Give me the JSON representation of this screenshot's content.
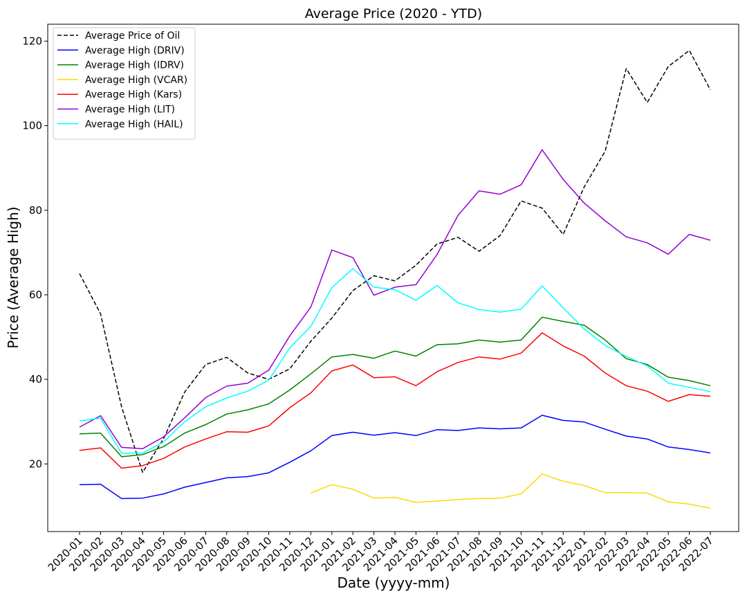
{
  "chart_data": {
    "type": "line",
    "title": "Average Price (2020 - YTD)",
    "xlabel": "Date (yyyy-mm)",
    "ylabel": "Price (Average High)",
    "ylim": [
      4,
      124
    ],
    "yticks": [
      20,
      40,
      60,
      80,
      100,
      120
    ],
    "grid": false,
    "legend_position": "upper-left",
    "categories": [
      "2020-01",
      "2020-02",
      "2020-03",
      "2020-04",
      "2020-05",
      "2020-06",
      "2020-07",
      "2020-08",
      "2020-09",
      "2020-10",
      "2020-11",
      "2020-12",
      "2021-01",
      "2021-02",
      "2021-03",
      "2021-04",
      "2021-05",
      "2021-06",
      "2021-07",
      "2021-08",
      "2021-09",
      "2021-10",
      "2021-11",
      "2021-12",
      "2022-01",
      "2022-02",
      "2022-03",
      "2022-04",
      "2022-05",
      "2022-06",
      "2022-07"
    ],
    "series": [
      {
        "name": "Average Price of Oil",
        "color": "#000000",
        "dashed": true,
        "values": [
          65.0,
          55.5,
          33.5,
          18.0,
          26.0,
          37.0,
          43.5,
          45.2,
          41.5,
          40.0,
          42.5,
          49.0,
          54.5,
          61.0,
          64.5,
          63.3,
          67.0,
          72.0,
          73.6,
          70.3,
          74.0,
          82.2,
          80.5,
          74.3,
          85.5,
          94.0,
          113.5,
          105.5,
          114.0,
          117.8,
          108.5
        ]
      },
      {
        "name": "Average High (DRIV)",
        "color": "#0000ff",
        "dashed": false,
        "values": [
          15.1,
          15.2,
          11.8,
          11.9,
          12.9,
          14.5,
          15.6,
          16.7,
          17.0,
          17.9,
          20.4,
          23.1,
          26.7,
          27.5,
          26.8,
          27.4,
          26.7,
          28.1,
          27.9,
          28.5,
          28.3,
          28.5,
          31.5,
          30.3,
          29.9,
          28.2,
          26.6,
          25.9,
          24.0,
          23.4,
          22.6
        ]
      },
      {
        "name": "Average High (IDRV)",
        "color": "#008000",
        "dashed": false,
        "values": [
          27.1,
          27.3,
          21.7,
          22.2,
          24.1,
          27.3,
          29.3,
          31.8,
          32.8,
          34.2,
          37.5,
          41.3,
          45.3,
          45.9,
          45.0,
          46.7,
          45.5,
          48.2,
          48.4,
          49.3,
          48.8,
          49.3,
          54.7,
          53.7,
          52.8,
          49.3,
          44.9,
          43.5,
          40.5,
          39.7,
          38.5
        ]
      },
      {
        "name": "Average High (VCAR)",
        "color": "#ffd700",
        "dashed": false,
        "values": [
          null,
          null,
          null,
          null,
          null,
          null,
          null,
          null,
          null,
          null,
          null,
          13.1,
          15.1,
          14.0,
          11.9,
          12.1,
          10.9,
          11.2,
          11.6,
          11.8,
          11.9,
          12.9,
          17.6,
          15.9,
          14.9,
          13.2,
          13.2,
          13.1,
          11.0,
          10.5,
          9.5
        ]
      },
      {
        "name": "Average High (Kars)",
        "color": "#ff0000",
        "dashed": false,
        "values": [
          23.2,
          23.8,
          19.0,
          19.6,
          21.3,
          24.0,
          25.9,
          27.6,
          27.5,
          29.0,
          33.3,
          36.8,
          42.0,
          43.4,
          40.4,
          40.6,
          38.5,
          41.8,
          44.0,
          45.3,
          44.8,
          46.2,
          51.0,
          47.9,
          45.5,
          41.5,
          38.5,
          37.2,
          34.8,
          36.4,
          36.0
        ]
      },
      {
        "name": "Average High (LIT)",
        "color": "#9400d3",
        "dashed": false,
        "values": [
          28.7,
          31.4,
          23.9,
          23.6,
          26.4,
          30.9,
          35.7,
          38.4,
          39.1,
          42.2,
          50.3,
          57.1,
          70.6,
          68.8,
          59.9,
          61.8,
          62.4,
          69.5,
          78.8,
          84.6,
          83.8,
          86.0,
          94.3,
          87.3,
          81.7,
          77.5,
          73.7,
          72.3,
          69.6,
          74.3,
          72.9
        ]
      },
      {
        "name": "Average High (HAIL)",
        "color": "#00ffff",
        "dashed": false,
        "values": [
          30.2,
          30.8,
          22.5,
          22.6,
          25.2,
          30.0,
          33.5,
          35.6,
          37.2,
          39.8,
          47.5,
          52.5,
          61.7,
          66.2,
          61.8,
          61.2,
          58.7,
          62.2,
          58.1,
          56.5,
          55.9,
          56.6,
          62.1,
          56.9,
          51.9,
          48.0,
          45.4,
          43.2,
          39.1,
          38.1,
          37.1
        ]
      }
    ]
  }
}
